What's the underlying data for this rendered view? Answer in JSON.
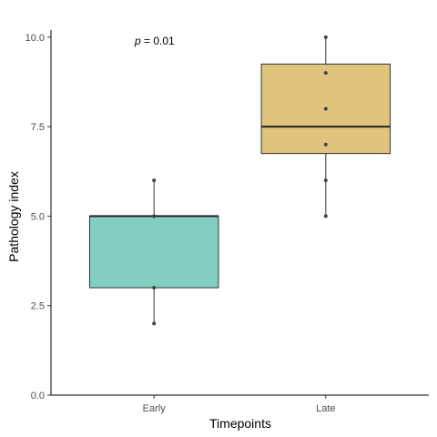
{
  "chart_data": {
    "type": "box",
    "xlabel": "Timepoints",
    "ylabel": "Pathology index",
    "ylim": [
      0,
      10.2
    ],
    "yticks": [
      0,
      2.5,
      5,
      7.5,
      10
    ],
    "ytick_labels": [
      "0.0",
      "2.5",
      "5.0",
      "7.5",
      "10.0"
    ],
    "grid": false,
    "annotation": {
      "prefix": "p",
      "text": " = 0.01"
    },
    "groups": [
      {
        "category": "Early",
        "color": "#82CFC2",
        "whisker_low": 2,
        "q1": 3,
        "median": 5,
        "q3": 5,
        "whisker_high": 6,
        "points": [
          2,
          3,
          5,
          5,
          6
        ]
      },
      {
        "category": "Late",
        "color": "#E0C47D",
        "whisker_low": 5,
        "q1": 6.75,
        "median": 7.5,
        "q3": 9.25,
        "whisker_high": 10,
        "points": [
          5,
          6,
          7,
          8,
          9,
          10
        ]
      }
    ]
  }
}
